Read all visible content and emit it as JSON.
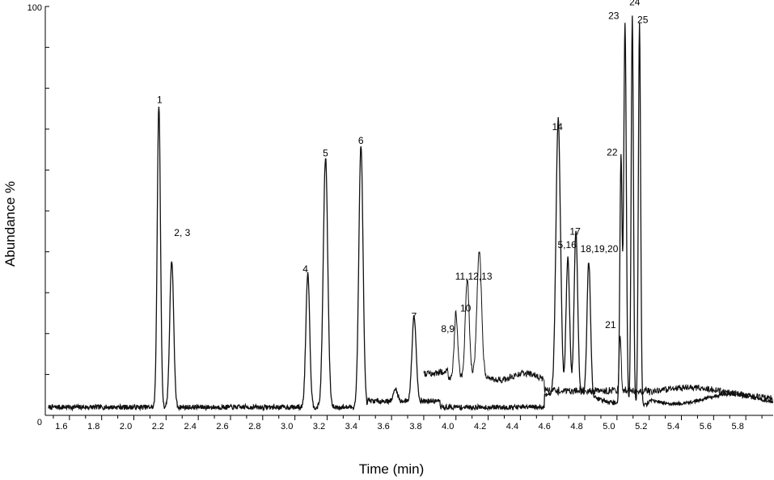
{
  "chart_data": {
    "type": "line",
    "title": "",
    "xlabel": "Time  (min)",
    "ylabel": "Abundance  %",
    "xlim": [
      1.5,
      6.02
    ],
    "ylim": [
      0,
      100
    ],
    "x_ticks": [
      "1.6",
      "1.8",
      "2.0",
      "2.2",
      "2.4",
      "2.6",
      "2.8",
      "3.0",
      "3.2",
      "3.4",
      "3.6",
      "3.8",
      "4.0",
      "4.2",
      "4.4",
      "4.6",
      "4.8",
      "5.0",
      "5.2",
      "5.4",
      "5.6",
      "5.8"
    ],
    "y_tick_labels": [
      "0",
      "100"
    ],
    "grid": false,
    "legend": "none",
    "line_color": "#111111",
    "peaks": [
      {
        "label": "1",
        "rt": 2.21,
        "height": 74
      },
      {
        "label": "2, 3",
        "rt": 2.29,
        "height": 36
      },
      {
        "label": "4",
        "rt": 3.13,
        "height": 33
      },
      {
        "label": "5",
        "rt": 3.24,
        "height": 61
      },
      {
        "label": "6",
        "rt": 3.46,
        "height": 64
      },
      {
        "label": "7",
        "rt": 3.79,
        "height": 21
      },
      {
        "label": "8,9",
        "rt": 4.05,
        "height": 16
      },
      {
        "label": "10",
        "rt": 4.12,
        "height": 23
      },
      {
        "label": "11,12,13",
        "rt": 4.2,
        "height": 30
      },
      {
        "label": "14",
        "rt": 4.68,
        "height": 67
      },
      {
        "label": "5,16",
        "rt": 4.74,
        "height": 33
      },
      {
        "label": "17",
        "rt": 4.79,
        "height": 40
      },
      {
        "label": "18,19,20",
        "rt": 4.87,
        "height": 33
      },
      {
        "label": "21",
        "rt": 5.07,
        "height": 14
      },
      {
        "label": "22",
        "rt": 5.08,
        "height": 60
      },
      {
        "label": "23",
        "rt": 5.1,
        "height": 93
      },
      {
        "label": "24",
        "rt": 5.15,
        "height": 95
      },
      {
        "label": "25",
        "rt": 5.19,
        "height": 93
      }
    ]
  }
}
